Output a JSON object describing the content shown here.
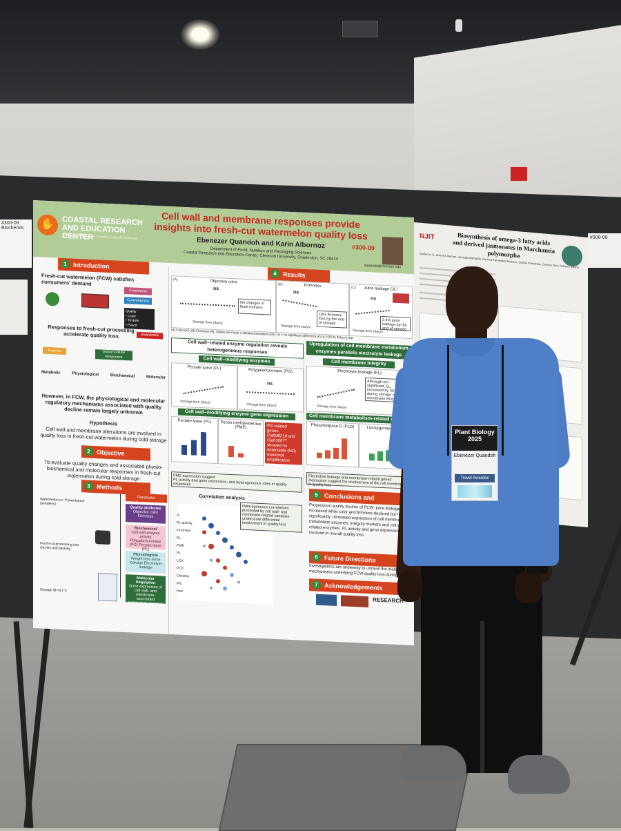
{
  "main_poster": {
    "center_name": "COASTAL RESEARCH AND EDUCATION CENTER",
    "center_subtitle": "College of Agriculture, Forestry and Life Sciences",
    "title": "Cell wall and membrane responses provide insights into fresh-cut watermelon quality loss",
    "authors": "Ebenezer Quandoh and Karin Albornoz",
    "department": "Department of Food, Nutrition and Packaging Sciences",
    "affiliation": "Coastal Research and Education Center, Clemson University, Charleston, SC 29414",
    "code": "#300-09",
    "email": "equando@clemson.edu",
    "sections": {
      "introduction": {
        "number": "1",
        "label": "Introduction",
        "lead": "Fresh-cut watermelon (FCW) satisfies consumers' demand",
        "tags": [
          "Freshness",
          "Convenience"
        ],
        "quality_items": [
          "Quality",
          "• Color",
          "• Texture",
          "• Flavor"
        ],
        "undesirable": "Undesirable",
        "responses": "Responses to fresh-cut processing accelerate quality loss",
        "fresh_cut_operation": "Fresh-cut operation",
        "global_responses": "Global Cellular Responses",
        "response_types": [
          "Metabolic",
          "Physiological",
          "Biochemical",
          "Molecular"
        ],
        "however": "However, in FCW, the physiological and molecular regulatory mechanisms associated with quality decline remain largely unknown",
        "hypothesis_title": "Hypothesis",
        "hypothesis": "Cell wall and membrane alterations are involved in quality loss in fresh-cut watermelon during cold storage"
      },
      "objective": {
        "number": "2",
        "label": "Objective",
        "text": "To evaluate quality changes and associated physio-biochemical and molecular responses in fresh-cut watermelon during cold storage"
      },
      "methods": {
        "number": "3",
        "label": "Methods",
        "cultivar": "Watermelon cv. 'Powerhouse' (seedless)",
        "processing": "Fresh-cut processing into chunks and packing",
        "storage": "Storage @ 4±1°C",
        "parameter_assessment": "Parameter Assessment",
        "quality_attributes": "Quality attributes",
        "quality_attributes_detail": "Objective color Firmness",
        "biochemical": "Biochemical",
        "biochemical_detail": "Cell wall enzyme activity Polygalacturonase (PG) Pectate lyase (PL)",
        "physiological": "Physiological",
        "physiological_detail": "Weight loss Juice leakage Electrolyte leakage",
        "molecular": "Molecular Regulation",
        "molecular_detail": "Gene expression of cell wall- and membrane-associated metabolism enzymes"
      },
      "results": {
        "number": "4",
        "label": "Results",
        "panels": [
          {
            "tag": "(A)",
            "title": "Objective color",
            "sig": "ns",
            "note": "No changes in flesh redness"
          },
          {
            "tag": "(B)",
            "title": "Firmness",
            "sig": "ns",
            "note": "18% firmness loss by the end of storage"
          },
          {
            "tag": "(C)",
            "title": "Juice leakage (JL)",
            "sig": "ns",
            "note": "2.4% juice leakage by the end of storage"
          }
        ],
        "xlabel": "Storage time (days)",
        "caption": "(A) Color (a*), (B) Firmness (N). Values are mean ± standard deviation (SD). ns = no significant difference at p ≤ 0.05 by Tukey's test",
        "enzyme_heading": "Cell wall–related enzyme regulation reveals heterogeneous responses",
        "enzyme_activity": "Cell wall–modifying enzymes activity",
        "pl_label": "Pectate lyase (PL)",
        "pg_label": "Polygalacturonase (PG)",
        "gene_expression": "Cell wall–modifying enzyme gene expression",
        "pme_label": "Pectin methylesterase (PME)",
        "pg_genes_note": "PG related genes, Cla006218 and Cla010077 showed no detectable (ND) transcript amplification",
        "pme_note": "PME expression suggest",
        "pl_note": "PL activity and gene expression, and heterogeneous roles in quality responses",
        "membrane_heading": "Upregulation of cell membrane metabolism enzymes parallels electrolyte leakage",
        "membrane_biomarker": "Cell membrane integrity biomarker",
        "el_label": "Electrolyte leakage (EL)",
        "el_note": "Although not significant, EL increased by 33.48% during storage = loss of membrane integrity",
        "membrane_genes": "Cell membrane metabolism-related enzyme gene expression",
        "pld_label": "Phospholipase D (PLD)",
        "lox_label": "Lipoxygenase (LOX)",
        "el_suggest": "Electrolyte leakage and membrane-related genes' expression suggest the involvement of the cell membrane in quality loss",
        "correlation": "Correlation analysis",
        "corr_note": "Heterogeneous correlations presented by cell wall- and membrane-related variables underscore differential involvement in quality loss",
        "corr_vars": [
          "JL",
          "PL activity",
          "Firmness",
          "EL",
          "PME",
          "PL",
          "LOX",
          "PLD",
          "Chroma",
          "WL",
          "Hue"
        ]
      },
      "conclusions": {
        "number": "5",
        "label": "Conclusions and Takeaways",
        "text": "Progressive quality decline of FCW: juice leakage increased while color and firmness declined but not significantly. Increased expression of cell membrane metabolism enzymes, integrity markers and cell wall-related enzymes, PL activity and gene expression involved in overall quality loss"
      },
      "future": {
        "number": "6",
        "label": "Future Directions",
        "text": "Investigations are underway to unravel the molecular mechanisms underlying FCW quality loss during"
      },
      "acknowledgements": {
        "number": "7",
        "label": "Acknowledgements",
        "sponsor": "RESEARCH"
      }
    }
  },
  "second_poster": {
    "institution": "NJIT",
    "title": "Biosynthesis of omega-3 fatty acids and derived jasmonates in Marchantia polymorpha",
    "authors": "Guillermo H. Jimenez-Aleman, Santiago Michavila, Gemma Fernandez-Barbero, Sophie Kneeshaw, Carmen Ruiz, Roberto Solano",
    "code": "#300-08"
  },
  "side_tags": {
    "left": "#300-09 Biochemis",
    "right": "#300-08"
  },
  "badge": {
    "event": "Plant Biology 2025",
    "name": "Ebenezer Quandoh",
    "award": "Travel Awardee"
  },
  "chart_colors": {
    "bars_blue": "#2c4a8a",
    "bars_red": "#d8533a",
    "bars_green": "#3aa15a",
    "accent_red": "#d5431f",
    "accent_green": "#2f6e3a"
  }
}
